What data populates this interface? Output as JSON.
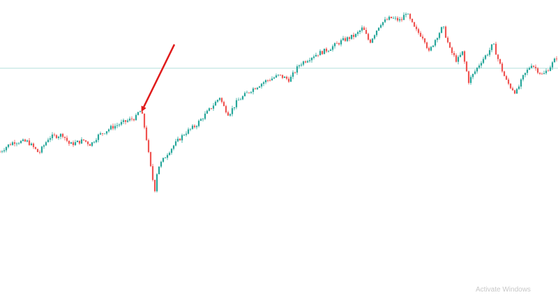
{
  "chart_data": {
    "type": "candlestick",
    "title": "",
    "xlabel": "",
    "ylabel": "",
    "ylim": [
      0,
      100
    ],
    "grid": false,
    "legend": "none",
    "colors": {
      "up": "#26a69a",
      "down": "#ef5350",
      "reference_line": "#b2dfdb",
      "annotation": "#e01b1b"
    },
    "reference_line": {
      "y": 77.5
    },
    "annotation": {
      "type": "arrow",
      "target_index": 67
    },
    "path": [
      [
        0,
        48.5
      ],
      [
        10,
        50.5
      ],
      [
        20,
        52.0
      ],
      [
        40,
        52.0
      ],
      [
        56,
        48.0
      ],
      [
        70,
        53.5
      ],
      [
        90,
        54.5
      ],
      [
        100,
        51.0
      ],
      [
        120,
        52.5
      ],
      [
        130,
        51.0
      ],
      [
        140,
        54.0
      ],
      [
        160,
        57.0
      ],
      [
        180,
        59.0
      ],
      [
        195,
        60.5
      ],
      [
        200,
        63.0
      ],
      [
        204,
        61.0
      ],
      [
        206,
        58.5
      ],
      [
        210,
        53.0
      ],
      [
        214,
        46.0
      ],
      [
        218,
        40.0
      ],
      [
        222,
        35.5
      ],
      [
        226,
        43.0
      ],
      [
        232,
        45.0
      ],
      [
        240,
        48.0
      ],
      [
        250,
        51.0
      ],
      [
        265,
        55.0
      ],
      [
        280,
        57.5
      ],
      [
        300,
        63.0
      ],
      [
        315,
        67.5
      ],
      [
        320,
        64.5
      ],
      [
        328,
        61.5
      ],
      [
        340,
        66.0
      ],
      [
        360,
        70.0
      ],
      [
        380,
        73.0
      ],
      [
        400,
        75.0
      ],
      [
        415,
        73.5
      ],
      [
        430,
        79.0
      ],
      [
        450,
        82.0
      ],
      [
        470,
        84.0
      ],
      [
        490,
        87.0
      ],
      [
        510,
        89.0
      ],
      [
        520,
        91.5
      ],
      [
        530,
        86.5
      ],
      [
        545,
        93.0
      ],
      [
        560,
        95.0
      ],
      [
        575,
        94.0
      ],
      [
        582,
        97.0
      ],
      [
        595,
        91.0
      ],
      [
        608,
        88.0
      ],
      [
        615,
        83.0
      ],
      [
        625,
        88.0
      ],
      [
        635,
        92.0
      ],
      [
        645,
        84.0
      ],
      [
        655,
        80.0
      ],
      [
        663,
        83.0
      ],
      [
        672,
        73.0
      ],
      [
        680,
        76.0
      ],
      [
        690,
        80.0
      ],
      [
        700,
        83.0
      ],
      [
        707,
        86.0
      ],
      [
        715,
        80.0
      ],
      [
        725,
        73.5
      ],
      [
        732,
        71.0
      ],
      [
        740,
        69.0
      ],
      [
        750,
        74.5
      ],
      [
        762,
        79.0
      ],
      [
        770,
        77.0
      ],
      [
        778,
        75.0
      ],
      [
        790,
        78.5
      ],
      [
        800,
        82.0
      ]
    ]
  },
  "watermark": {
    "text": "Activate Windows"
  }
}
